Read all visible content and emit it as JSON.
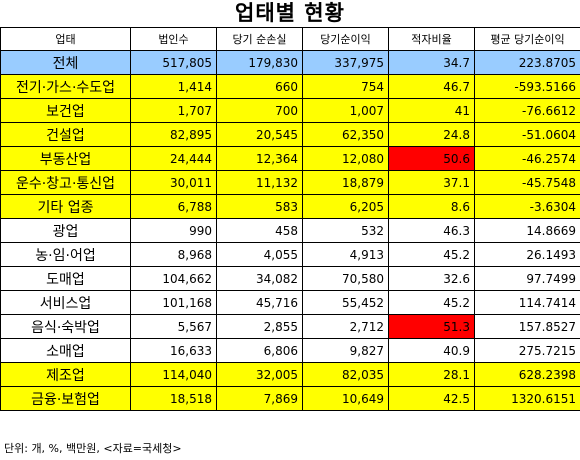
{
  "title": "업태별 현황",
  "headers": [
    "업태",
    "법인수",
    "당기 순손실",
    "당기순이익",
    "적자비율",
    "평균 당기순이익"
  ],
  "rows": [
    {
      "category": "전체",
      "corporations": "517,805",
      "net_loss": "179,830",
      "net_income": "337,975",
      "deficit_ratio": "34.7",
      "avg_net_income": "223.8705",
      "row_color": "total",
      "ratio_highlight": false
    },
    {
      "category": "전기·가스·수도업",
      "corporations": "1,414",
      "net_loss": "660",
      "net_income": "754",
      "deficit_ratio": "46.7",
      "avg_net_income": "-593.5166",
      "row_color": "yellow",
      "ratio_highlight": false
    },
    {
      "category": "보건업",
      "corporations": "1,707",
      "net_loss": "700",
      "net_income": "1,007",
      "deficit_ratio": "41",
      "avg_net_income": "-76.6612",
      "row_color": "yellow",
      "ratio_highlight": false
    },
    {
      "category": "건설업",
      "corporations": "82,895",
      "net_loss": "20,545",
      "net_income": "62,350",
      "deficit_ratio": "24.8",
      "avg_net_income": "-51.0604",
      "row_color": "yellow",
      "ratio_highlight": false
    },
    {
      "category": "부동산업",
      "corporations": "24,444",
      "net_loss": "12,364",
      "net_income": "12,080",
      "deficit_ratio": "50.6",
      "avg_net_income": "-46.2574",
      "row_color": "yellow",
      "ratio_highlight": true
    },
    {
      "category": "운수·창고·통신업",
      "corporations": "30,011",
      "net_loss": "11,132",
      "net_income": "18,879",
      "deficit_ratio": "37.1",
      "avg_net_income": "-45.7548",
      "row_color": "yellow",
      "ratio_highlight": false
    },
    {
      "category": "기타 업종",
      "corporations": "6,788",
      "net_loss": "583",
      "net_income": "6,205",
      "deficit_ratio": "8.6",
      "avg_net_income": "-3.6304",
      "row_color": "yellow",
      "ratio_highlight": false
    },
    {
      "category": "광업",
      "corporations": "990",
      "net_loss": "458",
      "net_income": "532",
      "deficit_ratio": "46.3",
      "avg_net_income": "14.8669",
      "row_color": "white",
      "ratio_highlight": false
    },
    {
      "category": "농·임·어업",
      "corporations": "8,968",
      "net_loss": "4,055",
      "net_income": "4,913",
      "deficit_ratio": "45.2",
      "avg_net_income": "26.1493",
      "row_color": "white",
      "ratio_highlight": false
    },
    {
      "category": "도매업",
      "corporations": "104,662",
      "net_loss": "34,082",
      "net_income": "70,580",
      "deficit_ratio": "32.6",
      "avg_net_income": "97.7499",
      "row_color": "white",
      "ratio_highlight": false
    },
    {
      "category": "서비스업",
      "corporations": "101,168",
      "net_loss": "45,716",
      "net_income": "55,452",
      "deficit_ratio": "45.2",
      "avg_net_income": "114.7414",
      "row_color": "white",
      "ratio_highlight": false
    },
    {
      "category": "음식·숙박업",
      "corporations": "5,567",
      "net_loss": "2,855",
      "net_income": "2,712",
      "deficit_ratio": "51.3",
      "avg_net_income": "157.8527",
      "row_color": "white",
      "ratio_highlight": true
    },
    {
      "category": "소매업",
      "corporations": "16,633",
      "net_loss": "6,806",
      "net_income": "9,827",
      "deficit_ratio": "40.9",
      "avg_net_income": "275.7215",
      "row_color": "white",
      "ratio_highlight": false
    },
    {
      "category": "제조업",
      "corporations": "114,040",
      "net_loss": "32,005",
      "net_income": "82,035",
      "deficit_ratio": "28.1",
      "avg_net_income": "628.2398",
      "row_color": "yellow",
      "ratio_highlight": false
    },
    {
      "category": "금융·보험업",
      "corporations": "18,518",
      "net_loss": "7,869",
      "net_income": "10,649",
      "deficit_ratio": "42.5",
      "avg_net_income": "1320.6151",
      "row_color": "yellow",
      "ratio_highlight": false
    }
  ],
  "footer": "단위: 개, %, 백만원, <자료=국세청>",
  "colors": {
    "total": "#99ccff",
    "yellow": "#ffff00",
    "highlight": "#ff0000"
  }
}
